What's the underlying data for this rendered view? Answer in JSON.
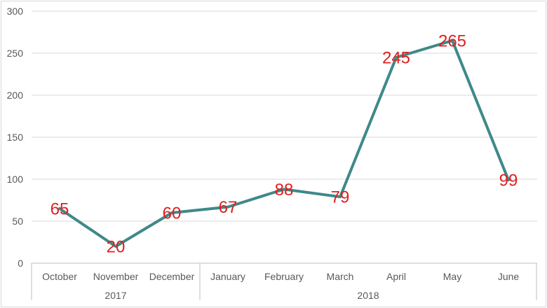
{
  "chart_data": {
    "type": "line",
    "title": "",
    "xlabel": "",
    "ylabel": "",
    "categories": [
      "October",
      "November",
      "December",
      "January",
      "February",
      "March",
      "April",
      "May",
      "June"
    ],
    "values": [
      65,
      20,
      60,
      67,
      88,
      79,
      245,
      265,
      99
    ],
    "data_labels": [
      "65",
      "20",
      "60",
      "67",
      "88",
      "79",
      "245",
      "265",
      "99"
    ],
    "year_groups": [
      {
        "label": "2017",
        "start": 0,
        "end": 2
      },
      {
        "label": "2018",
        "start": 3,
        "end": 8
      }
    ],
    "yticks": [
      0,
      50,
      100,
      150,
      200,
      250,
      300
    ],
    "ylim": [
      0,
      300
    ],
    "grid": true,
    "legend_position": "none",
    "colors": {
      "line": "#3F8989",
      "data_label": "#E01F1F",
      "axis_text": "#595959",
      "gridline": "#D9D9D9",
      "axis_line": "#BFBFBF",
      "chart_border": "#D9D9D9",
      "background": "#FFFFFF"
    }
  }
}
